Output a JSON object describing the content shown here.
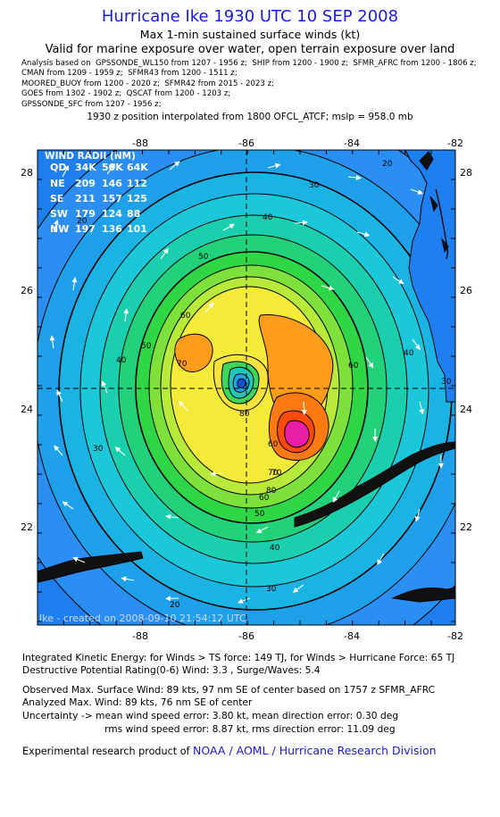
{
  "title": "Hurricane Ike 1930 UTC 10 SEP 2008",
  "subtitle1": "Max 1-min sustained surface winds (kt)",
  "subtitle2": "Valid for marine exposure over water, open terrain exposure over land",
  "analysis_lines": [
    "Analysis based on  GPSSONDE_WL150 from 1207 - 1956 z;  SHIP from 1200 - 1900 z;  SFMR_AFRC from 1200 - 1806 z;",
    "CMAN from 1209 - 1959 z;  SFMR43 from 1200 - 1511 z;",
    "MOORED_BUOY from 1200 - 2020 z;  SFMR42 from 2015 - 2023 z;",
    "GOES from 1302 - 1902 z;  QSCAT from 1200 - 1203 z;",
    "GPSSONDE_SFC from 1207 - 1956 z;"
  ],
  "position_line": "1930 z position interpolated from 1800 OFCL_ATCF; mslp = 958.0 mb",
  "map": {
    "lon_ticks": [
      "-88",
      "-86",
      "-84",
      "-82"
    ],
    "lat_ticks": [
      "28",
      "26",
      "24",
      "22"
    ],
    "center": {
      "lon": -86.0,
      "lat": 24.35
    },
    "watermark": "Ike - created on 2008-09-10 21:54:12 UTC",
    "wind_radii": {
      "title": "WIND RADII (NM)",
      "header": [
        "QD",
        "34K",
        "50K",
        "64K"
      ],
      "rows": [
        [
          "NE",
          "209",
          "146",
          "112"
        ],
        [
          "SE",
          "211",
          "157",
          "125"
        ],
        [
          "SW",
          "179",
          "124",
          "88"
        ],
        [
          "NW",
          "197",
          "136",
          "101"
        ]
      ]
    },
    "contour_labels": [
      "20",
      "30",
      "40",
      "50",
      "60",
      "70",
      "80",
      "20",
      "30",
      "40",
      "50",
      "60",
      "70",
      "80",
      "30",
      "40",
      "60",
      "30",
      "40",
      "50",
      "60",
      "70",
      "20"
    ],
    "colors": {
      "background_far": "#1e7ff0",
      "land": "#111111",
      "max_wind": "#e91ea4"
    }
  },
  "bottom": {
    "ike_line": "Integrated Kinetic Energy:  for Winds > TS force: 149 TJ,  for Winds > Hurricane Force: 65 TJ",
    "dpr_line": "Destructive Potential Rating(0-6)   Wind: 3.3 , Surge/Waves: 5.4",
    "obs_line": "Observed Max. Surface Wind: 89 kts, 97 nm SE of center based on 1757 z SFMR_AFRC",
    "ana_line": "Analyzed Max. Wind: 89 kts, 76 nm SE of center",
    "unc_line1": "Uncertainty -> mean wind speed error: 3.80 kt,   mean direction error: 0.30 deg",
    "unc_line2": "rms wind speed error: 8.87 kt,   rms direction error: 11.09 deg",
    "credit_prefix": "Experimental research product of ",
    "credit_link": "NOAA / AOML / Hurricane Research Division"
  }
}
